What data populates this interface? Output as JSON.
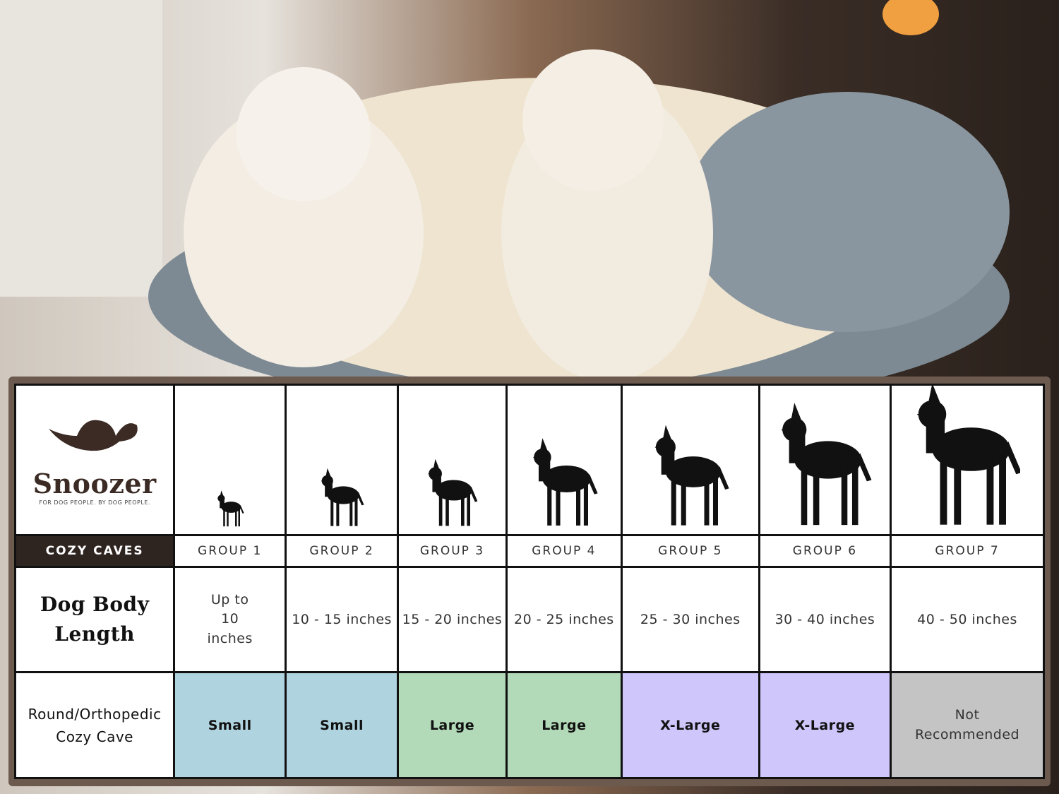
{
  "brand": {
    "name": "Snoozer",
    "tagline": "FOR DOG PEOPLE. BY DOG PEOPLE."
  },
  "table": {
    "product_line": "COZY CAVES",
    "groups": [
      "GROUP 1",
      "GROUP 2",
      "GROUP 3",
      "GROUP 4",
      "GROUP 5",
      "GROUP 6",
      "GROUP 7"
    ],
    "row_labels": [
      "Dog Body Length",
      "Round/Orthopedic Cozy Cave"
    ],
    "lengths": [
      "Up to 10 inches",
      "10 - 15 inches",
      "15 - 20 inches",
      "20 - 25 inches",
      "25 - 30 inches",
      "30 - 40 inches",
      "40 - 50 inches"
    ],
    "sizes": [
      {
        "label": "Small",
        "color": "#afd4e0"
      },
      {
        "label": "Small",
        "color": "#afd4e0"
      },
      {
        "label": "Large",
        "color": "#b2d9b8"
      },
      {
        "label": "Large",
        "color": "#b2d9b8"
      },
      {
        "label": "X-Large",
        "color": "#cfc6fb"
      },
      {
        "label": "X-Large",
        "color": "#cfc6fb"
      },
      {
        "label": "Not Recommended",
        "color": "#c4c4c4"
      }
    ]
  }
}
